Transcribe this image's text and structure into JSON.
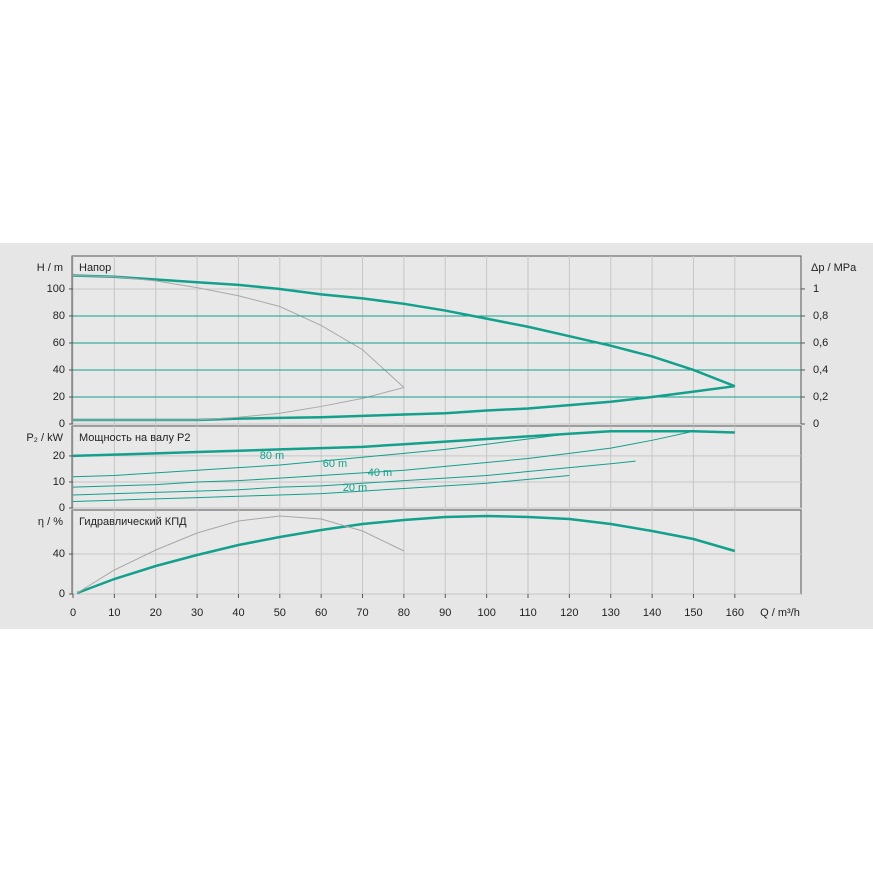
{
  "chart_data": [
    {
      "type": "line",
      "title": "Напор",
      "y_label": "H / m",
      "y2_label": "Δp / MPa",
      "xlim": [
        0,
        176
      ],
      "ylim": [
        0,
        124.4
      ],
      "yticks": [
        0,
        20,
        40,
        60,
        80,
        100
      ],
      "y2lim": [
        0,
        1.244
      ],
      "y2ticks": [
        0,
        {
          "value": 0.2,
          "label": "0,2"
        },
        {
          "value": 0.4,
          "label": "0,4"
        },
        {
          "value": 0.6,
          "label": "0,6"
        },
        {
          "value": 0.8,
          "label": "0,8"
        },
        1
      ],
      "grid": true,
      "series": [
        {
          "color": "#13a08c",
          "width": 2.5,
          "x": [
            0,
            10,
            20,
            30,
            40,
            50,
            60,
            70,
            80,
            90,
            100,
            110,
            120,
            130,
            140,
            150,
            160
          ],
          "values": [
            110,
            109,
            107,
            105,
            103,
            100,
            96,
            93,
            89,
            84,
            78,
            72,
            65,
            58,
            50,
            40,
            28
          ]
        },
        {
          "color": "#13a08c",
          "width": 2.5,
          "x": [
            0,
            10,
            20,
            30,
            40,
            50,
            60,
            70,
            80,
            90,
            100,
            110,
            120,
            130,
            140,
            150,
            160
          ],
          "values": [
            3,
            3,
            3,
            3,
            4,
            4.5,
            5,
            6,
            7,
            8,
            10,
            11.5,
            14,
            16.5,
            20,
            24,
            28
          ]
        },
        {
          "color": "#a8a8a8",
          "width": 1,
          "x": [
            0,
            10,
            20,
            30,
            40,
            50,
            60,
            70,
            80
          ],
          "values": [
            110,
            109,
            106,
            101,
            95,
            87,
            73,
            55,
            27
          ]
        },
        {
          "color": "#a8a8a8",
          "width": 1,
          "x": [
            0,
            10,
            20,
            30,
            40,
            50,
            60,
            70,
            80
          ],
          "values": [
            3,
            3,
            3,
            3,
            5,
            8,
            13,
            19,
            27
          ]
        },
        {
          "color": "#13a08c",
          "width": 1,
          "x": [
            0,
            176
          ],
          "values": [
            20,
            20
          ]
        },
        {
          "color": "#13a08c",
          "width": 1,
          "x": [
            0,
            176
          ],
          "values": [
            40,
            40
          ]
        },
        {
          "color": "#13a08c",
          "width": 1,
          "x": [
            0,
            176
          ],
          "values": [
            60,
            60
          ]
        },
        {
          "color": "#13a08c",
          "width": 1,
          "x": [
            0,
            176
          ],
          "values": [
            80,
            80
          ]
        }
      ]
    },
    {
      "type": "line",
      "title": "Мощность на валу P2",
      "y_label": "P₂ / kW",
      "xlim": [
        0,
        176
      ],
      "ylim": [
        0,
        31.5
      ],
      "yticks": [
        0,
        10,
        20
      ],
      "grid": true,
      "annotations": [
        "80 m",
        "60 m",
        "40 m",
        "20 m"
      ],
      "series": [
        {
          "color": "#13a08c",
          "width": 2.5,
          "x": [
            0,
            10,
            20,
            30,
            40,
            50,
            60,
            70,
            80,
            90,
            100,
            110,
            120,
            130,
            140,
            150,
            160
          ],
          "values": [
            20,
            20.5,
            21,
            21.5,
            22,
            22.5,
            23,
            23.5,
            24.5,
            25.5,
            26.5,
            27.5,
            28.5,
            29.5,
            29.5,
            29.5,
            29
          ]
        },
        {
          "color": "#13a08c",
          "width": 1,
          "x": [
            0,
            10,
            20,
            30,
            40,
            50,
            60,
            70,
            80,
            90,
            100,
            110,
            120,
            127
          ],
          "values": [
            12,
            12.5,
            13.5,
            14.5,
            15.5,
            16.5,
            18,
            19.5,
            21,
            22.5,
            24.5,
            26.5,
            28.5,
            29.5
          ]
        },
        {
          "color": "#13a08c",
          "width": 1,
          "x": [
            0,
            10,
            20,
            30,
            40,
            50,
            60,
            70,
            80,
            90,
            100,
            110,
            120,
            130,
            140,
            150
          ],
          "values": [
            8,
            8.5,
            9,
            10,
            10.5,
            11.5,
            12.5,
            13.5,
            14.5,
            16,
            17.5,
            19,
            21,
            23,
            26,
            29.5
          ]
        },
        {
          "color": "#13a08c",
          "width": 1,
          "x": [
            0,
            10,
            20,
            30,
            40,
            50,
            60,
            70,
            80,
            90,
            100,
            110,
            120,
            130,
            136
          ],
          "values": [
            5,
            5.5,
            6,
            6.5,
            7,
            8,
            8.5,
            9.5,
            10.5,
            11.5,
            12.5,
            14,
            15.5,
            17,
            18
          ]
        },
        {
          "color": "#13a08c",
          "width": 1,
          "x": [
            0,
            10,
            20,
            30,
            40,
            50,
            60,
            70,
            80,
            90,
            100,
            110,
            120
          ],
          "values": [
            2.5,
            3,
            3.5,
            4,
            4.5,
            5,
            5.5,
            6.5,
            7.5,
            8.5,
            9.5,
            11,
            12.5
          ]
        }
      ]
    },
    {
      "type": "line",
      "title": "Гидравлический КПД",
      "y_label": "η / %",
      "x_label": "Q / m³/h",
      "xlim": [
        0,
        176
      ],
      "ylim": [
        0,
        84
      ],
      "yticks": [
        0,
        40
      ],
      "xticks": [
        0,
        10,
        20,
        30,
        40,
        50,
        60,
        70,
        80,
        90,
        100,
        110,
        120,
        130,
        140,
        150,
        160
      ],
      "grid": true,
      "series": [
        {
          "color": "#13a08c",
          "width": 2.5,
          "x": [
            1,
            10,
            20,
            30,
            40,
            50,
            60,
            70,
            80,
            90,
            100,
            110,
            120,
            130,
            140,
            150,
            160
          ],
          "values": [
            1,
            15,
            28,
            39,
            49,
            57,
            64,
            70,
            74,
            77,
            78,
            77,
            75,
            70,
            63,
            55,
            43
          ]
        },
        {
          "color": "#a8a8a8",
          "width": 1,
          "x": [
            1,
            10,
            20,
            30,
            40,
            50,
            60,
            70,
            80
          ],
          "values": [
            1,
            24,
            44,
            61,
            73,
            78,
            75,
            63,
            43
          ]
        }
      ]
    }
  ]
}
